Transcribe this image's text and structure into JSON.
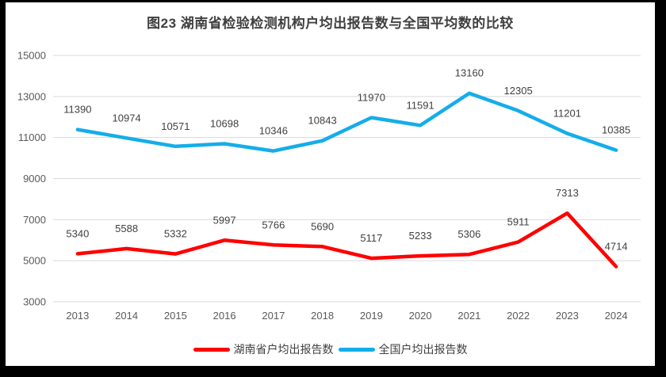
{
  "chart_data": {
    "type": "line",
    "title": "图23  湖南省检验检测机构户均出报告数与全国平均数的比较",
    "categories": [
      "2013",
      "2014",
      "2015",
      "2016",
      "2017",
      "2018",
      "2019",
      "2020",
      "2021",
      "2022",
      "2023",
      "2024"
    ],
    "series": [
      {
        "name": "湖南省户均出报告数",
        "key": "hunan",
        "color": "#ff0000",
        "values": [
          5340,
          5588,
          5332,
          5997,
          5766,
          5690,
          5117,
          5233,
          5306,
          5911,
          7313,
          4714
        ]
      },
      {
        "name": "全国户均出报告数",
        "key": "national",
        "color": "#14adea",
        "values": [
          11390,
          10974,
          10571,
          10698,
          10346,
          10843,
          11970,
          11591,
          13160,
          12305,
          11201,
          10385
        ]
      }
    ],
    "yticks": [
      15000,
      13000,
      11000,
      9000,
      7000,
      5000,
      3000
    ],
    "ylim": [
      3000,
      15000
    ],
    "grid": true,
    "data_labels": true,
    "legend_position": "bottom"
  },
  "style_colors": {
    "gridline": "#d9d9d9",
    "tick_label": "#595959",
    "data_label": "#404040",
    "title": "#3f3f3f"
  }
}
